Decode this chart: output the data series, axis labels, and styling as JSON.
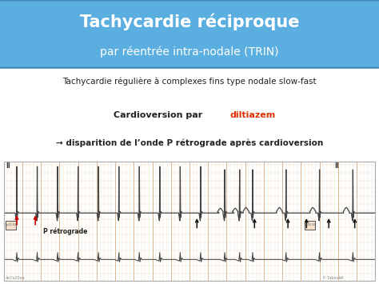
{
  "title_line1": "Tachycardie réciproque",
  "title_line2": "par réentrée intra-nodale (TRIN)",
  "title_bg_color": "#5BAEE0",
  "title_text_color": "#FFFFFF",
  "body_bg_color": "#FFFFFF",
  "text1": "Tachycardie régulière à complexes fins type nodale slow-fast",
  "text2_part1": "Cardioversion par ",
  "text2_red": "diltiazem",
  "text3": "→ disparition de l’onde P rétrograde après cardioversion",
  "text_color": "#222222",
  "red_color": "#DD3300",
  "ecg_bg": "#F5E0CC",
  "ecg_grid_minor_color": "#E8C8A8",
  "ecg_grid_major_color": "#D4A880",
  "ecg_line_color": "#444444",
  "arrow_red_color": "#CC0000",
  "arrow_black_color": "#111111",
  "label_retrograde": "P rétrograde",
  "label_II_left": "II",
  "label_II_right": "II",
  "watermark_left": "Ao7a20oa",
  "watermark_right": "P. Taboulet"
}
